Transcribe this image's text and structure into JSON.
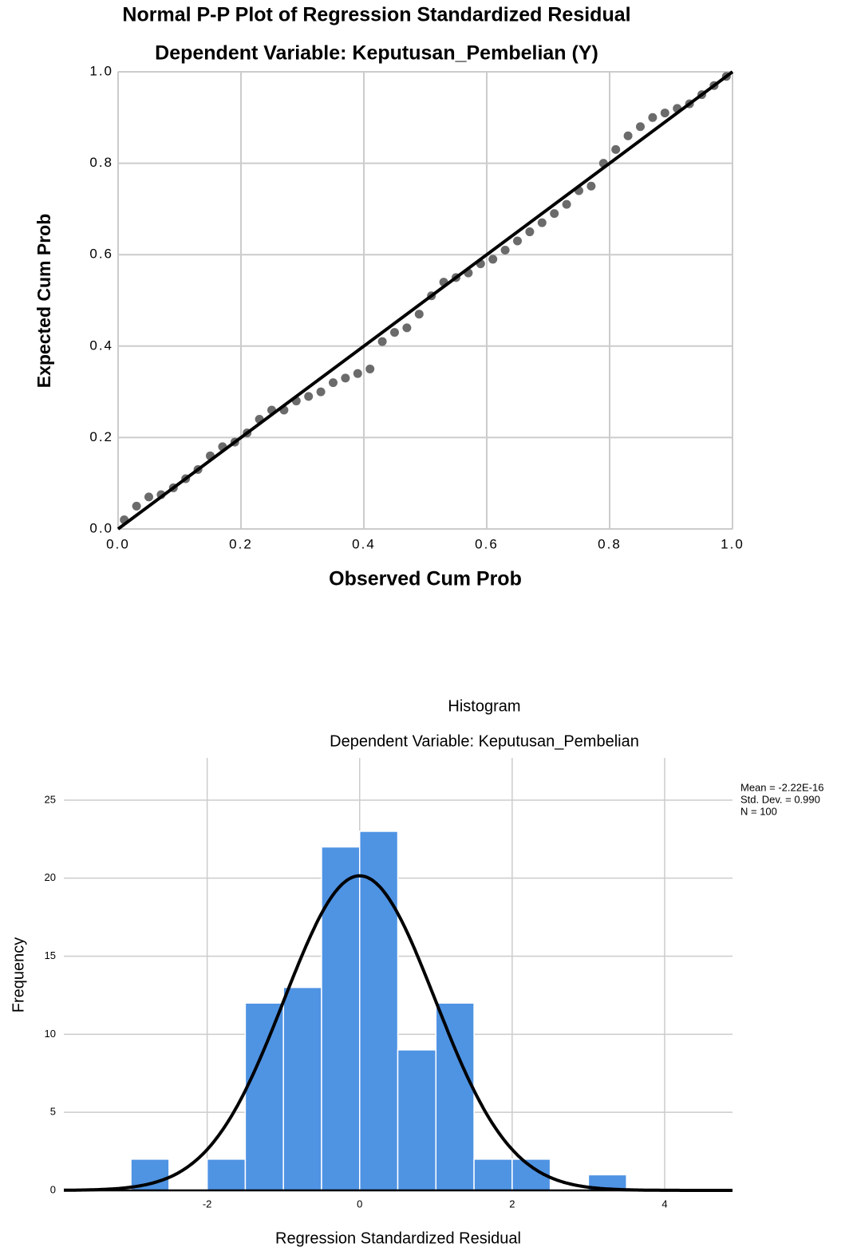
{
  "chart_data": [
    {
      "type": "scatter",
      "title": "Normal P-P Plot of Regression Standardized Residual",
      "subtitle": "Dependent Variable: Keputusan_Pembelian (Y)",
      "x_label": "Observed Cum Prob",
      "y_label": "Expected Cum Prob",
      "xlim": [
        0,
        1
      ],
      "ylim": [
        0,
        1
      ],
      "xticks": [
        {
          "value": 0,
          "label": "0.0"
        },
        0.2,
        0.4,
        0.6,
        0.8,
        {
          "value": 1,
          "label": "1.0"
        }
      ],
      "yticks": [
        {
          "value": 0,
          "label": "0.0"
        },
        0.2,
        0.4,
        0.6,
        0.8,
        {
          "value": 1,
          "label": "1.0"
        }
      ],
      "grid": true,
      "reference_line": true,
      "color": "#6b6b6b",
      "x": [
        0.01,
        0.03,
        0.05,
        0.07,
        0.09,
        0.11,
        0.13,
        0.15,
        0.17,
        0.19,
        0.21,
        0.23,
        0.25,
        0.27,
        0.29,
        0.31,
        0.33,
        0.35,
        0.37,
        0.39,
        0.41,
        0.43,
        0.45,
        0.47,
        0.49,
        0.51,
        0.53,
        0.55,
        0.57,
        0.59,
        0.61,
        0.63,
        0.65,
        0.67,
        0.69,
        0.71,
        0.73,
        0.75,
        0.77,
        0.79,
        0.81,
        0.83,
        0.85,
        0.87,
        0.89,
        0.91,
        0.93,
        0.95,
        0.97,
        0.99
      ],
      "y": [
        0.02,
        0.05,
        0.07,
        0.075,
        0.09,
        0.11,
        0.13,
        0.16,
        0.18,
        0.19,
        0.21,
        0.24,
        0.26,
        0.26,
        0.28,
        0.29,
        0.3,
        0.32,
        0.33,
        0.34,
        0.35,
        0.41,
        0.43,
        0.44,
        0.47,
        0.51,
        0.54,
        0.55,
        0.56,
        0.58,
        0.59,
        0.61,
        0.63,
        0.65,
        0.67,
        0.69,
        0.71,
        0.74,
        0.75,
        0.8,
        0.83,
        0.86,
        0.88,
        0.9,
        0.91,
        0.92,
        0.93,
        0.95,
        0.97,
        0.99
      ]
    },
    {
      "type": "histogram",
      "title": "Histogram",
      "subtitle": "Dependent Variable: Keputusan_Pembelian",
      "x_label": "Regression Standardized Residual",
      "y_label": "Frequency",
      "xlim": [
        -3.88,
        4.89
      ],
      "ylim": [
        0,
        27.7
      ],
      "xticks": [
        -2,
        0,
        2,
        4
      ],
      "yticks": [
        0,
        5,
        10,
        15,
        20,
        25
      ],
      "grid": true,
      "color": "#4f93e3",
      "bins": [
        -3,
        -2.5,
        -2,
        -1.5,
        -1,
        -0.5,
        0,
        0.5,
        1,
        1.5,
        2,
        2.5,
        3,
        3.5
      ],
      "values": [
        2,
        0,
        2,
        12,
        13,
        22,
        23,
        9,
        12,
        2,
        2,
        0,
        1
      ],
      "stats": [
        {
          "value": -2.22e-16,
          "label": "Mean = -2.22E-16"
        },
        {
          "value": 0.99,
          "label": "Std. Dev. = 0.990"
        },
        {
          "value": 100,
          "label": "N = 100"
        }
      ]
    }
  ]
}
